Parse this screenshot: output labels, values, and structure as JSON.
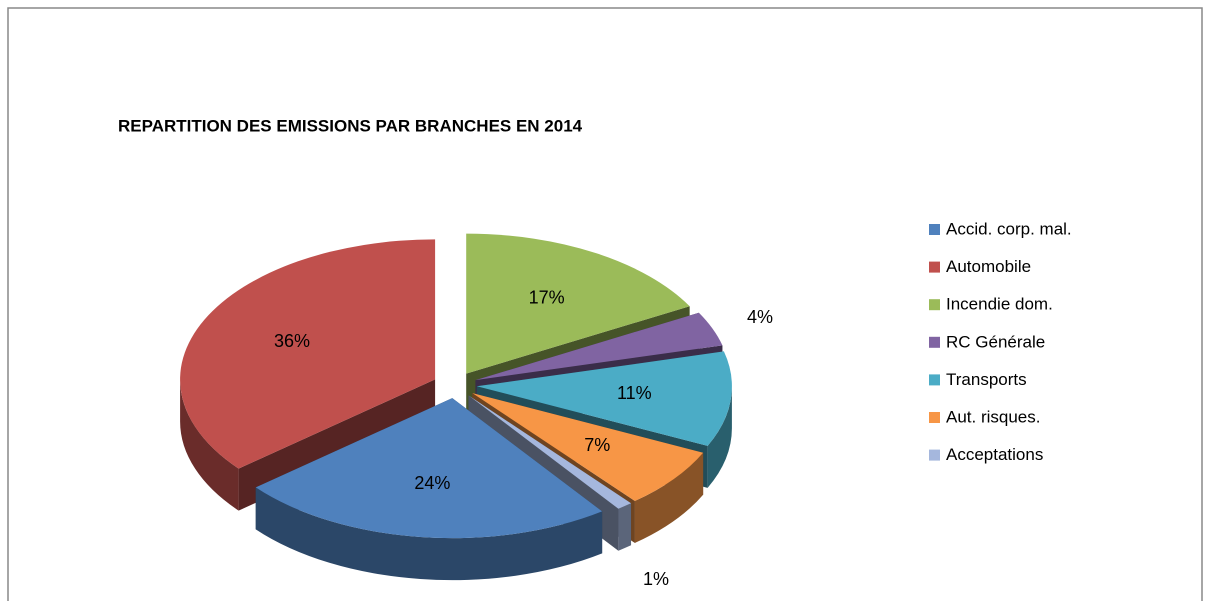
{
  "chart_data": {
    "type": "pie",
    "title": "REPARTITION DES EMISSIONS PAR BRANCHES EN 2014",
    "categories": [
      "Accid. corp. mal.",
      "Automobile",
      "Incendie dom.",
      "RC Générale",
      "Transports",
      "Aut. risques.",
      "Acceptations"
    ],
    "values": [
      24,
      36,
      17,
      4,
      11,
      7,
      1
    ],
    "value_labels": [
      "24%",
      "36%",
      "17%",
      "4%",
      "11%",
      "7%",
      "1%"
    ],
    "colors": [
      "#4f81bd",
      "#c0504d",
      "#9bbb59",
      "#8064a2",
      "#4bacc6",
      "#f79646",
      "#a5b7dd"
    ],
    "legend": "right"
  }
}
